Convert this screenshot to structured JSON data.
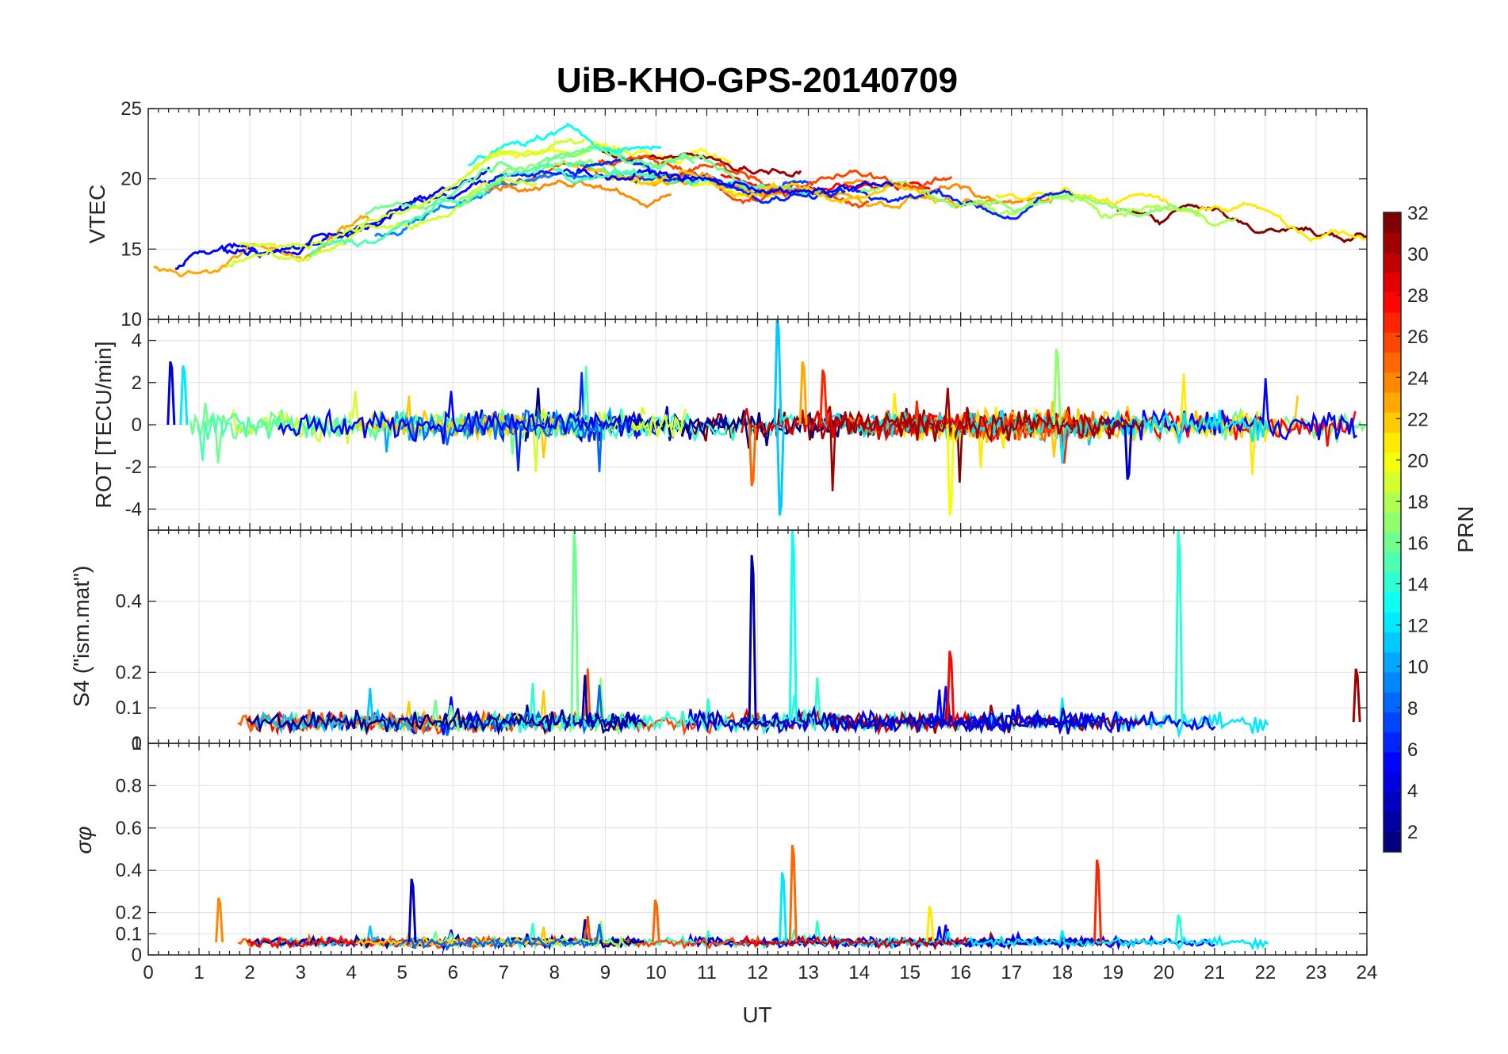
{
  "chart_data": {
    "type": "line",
    "title": "UiB-KHO-GPS-20140709",
    "xlabel": "UT",
    "x_ticks": [
      "0",
      "1",
      "2",
      "3",
      "4",
      "5",
      "6",
      "7",
      "8",
      "9",
      "10",
      "11",
      "12",
      "13",
      "14",
      "15",
      "16",
      "17",
      "18",
      "19",
      "20",
      "21",
      "22",
      "23",
      "24"
    ],
    "xlim": [
      0,
      24
    ],
    "grid": true,
    "colorbar": {
      "label": "PRN",
      "range": [
        1,
        32
      ],
      "ticks": [
        "2",
        "4",
        "6",
        "8",
        "10",
        "12",
        "14",
        "16",
        "18",
        "20",
        "22",
        "24",
        "26",
        "28",
        "30",
        "32"
      ],
      "colormap": "jet"
    },
    "panels": [
      {
        "ylabel": "VTEC",
        "ylim": [
          10,
          25
        ],
        "ticks": [
          "10",
          "15",
          "20",
          "25"
        ],
        "tick_values": [
          10,
          15,
          20,
          25
        ],
        "envelope": [
          {
            "x": 0,
            "y": 13
          },
          {
            "x": 1,
            "y": 13.5
          },
          {
            "x": 2,
            "y": 14.5
          },
          {
            "x": 3,
            "y": 14.5
          },
          {
            "x": 4,
            "y": 16
          },
          {
            "x": 5,
            "y": 17
          },
          {
            "x": 6,
            "y": 18.5
          },
          {
            "x": 7,
            "y": 20.5
          },
          {
            "x": 8,
            "y": 21
          },
          {
            "x": 9,
            "y": 21
          },
          {
            "x": 10,
            "y": 20.5
          },
          {
            "x": 11,
            "y": 20.5
          },
          {
            "x": 12,
            "y": 19.5
          },
          {
            "x": 13,
            "y": 19.5
          },
          {
            "x": 14,
            "y": 19.5
          },
          {
            "x": 15,
            "y": 19.5
          },
          {
            "x": 16,
            "y": 19
          },
          {
            "x": 17,
            "y": 18.5
          },
          {
            "x": 18,
            "y": 19
          },
          {
            "x": 19,
            "y": 18
          },
          {
            "x": 20,
            "y": 18
          },
          {
            "x": 21,
            "y": 18
          },
          {
            "x": 22,
            "y": 17.5
          },
          {
            "x": 23,
            "y": 16
          },
          {
            "x": 24,
            "y": 16
          }
        ]
      },
      {
        "ylabel": "ROT [TECU/min]",
        "ylim": [
          -5,
          5
        ],
        "ticks": [
          "-4",
          "-2",
          "0",
          "2",
          "4"
        ],
        "tick_values": [
          -4,
          -2,
          0,
          2,
          4
        ],
        "spikes": [
          {
            "x": 0.45,
            "y": 3.0,
            "prn": 4
          },
          {
            "x": 0.7,
            "y": 2.8,
            "prn": 12
          },
          {
            "x": 12.4,
            "y": 5.0,
            "prn": 11
          },
          {
            "x": 12.45,
            "y": -4.3,
            "prn": 11
          },
          {
            "x": 12.9,
            "y": 3.0,
            "prn": 23
          },
          {
            "x": 13.3,
            "y": 2.6,
            "prn": 27
          },
          {
            "x": 15.8,
            "y": -4.3,
            "prn": 20
          },
          {
            "x": 17.9,
            "y": 3.6,
            "prn": 17
          },
          {
            "x": 19.3,
            "y": -2.6,
            "prn": 3
          },
          {
            "x": 11.9,
            "y": -2.9,
            "prn": 25
          }
        ]
      },
      {
        "ylabel": "S4 (\"ism.mat\")",
        "ylim": [
          0,
          0.6
        ],
        "ticks": [
          "0",
          "0.1",
          "0.2",
          "0.4"
        ],
        "tick_values": [
          0,
          0.1,
          0.2,
          0.4
        ],
        "spikes": [
          {
            "x": 8.4,
            "y": 0.6,
            "prn": 16
          },
          {
            "x": 11.9,
            "y": 0.53,
            "prn": 2
          },
          {
            "x": 12.7,
            "y": 0.6,
            "prn": 13
          },
          {
            "x": 15.8,
            "y": 0.26,
            "prn": 28
          },
          {
            "x": 20.3,
            "y": 0.6,
            "prn": 14
          },
          {
            "x": 23.8,
            "y": 0.21,
            "prn": 31
          }
        ]
      },
      {
        "ylabel": "σφ",
        "ylim": [
          0,
          1
        ],
        "ticks": [
          "0",
          "0.1",
          "0.2",
          "0.4",
          "0.6",
          "0.8",
          "1"
        ],
        "tick_values": [
          0,
          0.1,
          0.2,
          0.4,
          0.6,
          0.8,
          1
        ],
        "spikes": [
          {
            "x": 1.4,
            "y": 0.27,
            "prn": 24
          },
          {
            "x": 5.2,
            "y": 0.36,
            "prn": 3
          },
          {
            "x": 12.5,
            "y": 0.39,
            "prn": 12
          },
          {
            "x": 12.7,
            "y": 0.52,
            "prn": 25
          },
          {
            "x": 18.7,
            "y": 0.45,
            "prn": 27
          },
          {
            "x": 15.4,
            "y": 0.23,
            "prn": 21
          },
          {
            "x": 10.0,
            "y": 0.26,
            "prn": 25
          },
          {
            "x": 20.3,
            "y": 0.19,
            "prn": 14
          }
        ]
      }
    ]
  }
}
